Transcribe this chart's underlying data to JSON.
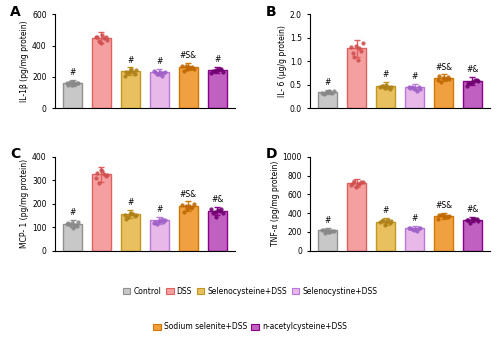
{
  "panels": [
    {
      "label": "A",
      "ylabel": "IL-1β (pg/mg protein)",
      "ylim": [
        0,
        600
      ],
      "yticks": [
        0,
        200,
        400,
        600
      ],
      "bar_means": [
        160,
        450,
        235,
        230,
        265,
        245
      ],
      "bar_errors": [
        18,
        35,
        25,
        20,
        22,
        18
      ],
      "sig_labels": [
        "#",
        "",
        "#",
        "#",
        "#S&",
        "#"
      ],
      "dots": [
        [
          145,
          152,
          160,
          158,
          165,
          170,
          150,
          162
        ],
        [
          415,
          435,
          455,
          470,
          448,
          432,
          458,
          452
        ],
        [
          205,
          220,
          238,
          232,
          248,
          228,
          222,
          242
        ],
        [
          205,
          218,
          232,
          222,
          238,
          228,
          218,
          232
        ],
        [
          238,
          252,
          262,
          268,
          258,
          272,
          252,
          265
        ],
        [
          222,
          232,
          242,
          248,
          238,
          252,
          245,
          235
        ]
      ]
    },
    {
      "label": "B",
      "ylabel": "IL- 6 (μg/g protein)",
      "ylim": [
        0,
        2.0
      ],
      "yticks": [
        0.0,
        0.5,
        1.0,
        1.5,
        2.0
      ],
      "bar_means": [
        0.35,
        1.28,
        0.48,
        0.45,
        0.65,
        0.58
      ],
      "bar_errors": [
        0.04,
        0.18,
        0.07,
        0.06,
        0.07,
        0.08
      ],
      "sig_labels": [
        "#",
        "",
        "#",
        "#",
        "#S&",
        "#&"
      ],
      "dots": [
        [
          0.3,
          0.32,
          0.35,
          0.34,
          0.37,
          0.33,
          0.32,
          0.36
        ],
        [
          1.02,
          1.08,
          1.28,
          1.38,
          1.32,
          1.18,
          1.22,
          1.3
        ],
        [
          0.4,
          0.43,
          0.48,
          0.46,
          0.5,
          0.45,
          0.44,
          0.48
        ],
        [
          0.37,
          0.4,
          0.44,
          0.42,
          0.46,
          0.41,
          0.43,
          0.45
        ],
        [
          0.56,
          0.6,
          0.64,
          0.66,
          0.63,
          0.61,
          0.65,
          0.68
        ],
        [
          0.48,
          0.53,
          0.56,
          0.6,
          0.55,
          0.58,
          0.53,
          0.6
        ]
      ]
    },
    {
      "label": "C",
      "ylabel": "MCP- 1 (pg/mg protein)",
      "ylim": [
        0,
        400
      ],
      "yticks": [
        0,
        100,
        200,
        300,
        400
      ],
      "bar_means": [
        115,
        325,
        155,
        130,
        190,
        170
      ],
      "bar_errors": [
        15,
        32,
        18,
        15,
        20,
        18
      ],
      "sig_labels": [
        "#",
        "",
        "#",
        "#",
        "#S&",
        "#&"
      ],
      "dots": [
        [
          98,
          108,
          118,
          113,
          122,
          106,
          110,
          116
        ],
        [
          290,
          308,
          328,
          342,
          318,
          332,
          322,
          338
        ],
        [
          135,
          145,
          155,
          152,
          162,
          147,
          152,
          158
        ],
        [
          112,
          120,
          130,
          126,
          136,
          122,
          118,
          128
        ],
        [
          165,
          178,
          190,
          196,
          182,
          192,
          185,
          198
        ],
        [
          145,
          160,
          170,
          176,
          162,
          172,
          165,
          178
        ]
      ]
    },
    {
      "label": "D",
      "ylabel": "TNF-α (pg/mg protein)",
      "ylim": [
        0,
        1000
      ],
      "yticks": [
        0,
        200,
        400,
        600,
        800,
        1000
      ],
      "bar_means": [
        215,
        720,
        310,
        240,
        370,
        330
      ],
      "bar_errors": [
        25,
        45,
        35,
        25,
        30,
        28
      ],
      "sig_labels": [
        "#",
        "",
        "#",
        "#",
        "#S&",
        "#&"
      ],
      "dots": [
        [
          188,
          202,
          212,
          218,
          208,
          222,
          205,
          215
        ],
        [
          675,
          695,
          725,
          740,
          715,
          705,
          730,
          735
        ],
        [
          272,
          292,
          312,
          322,
          302,
          318,
          308,
          322
        ],
        [
          212,
          225,
          238,
          245,
          232,
          242,
          235,
          245
        ],
        [
          338,
          355,
          370,
          378,
          362,
          375,
          365,
          380
        ],
        [
          298,
          315,
          328,
          338,
          322,
          335,
          325,
          342
        ]
      ]
    }
  ],
  "groups": [
    "Control",
    "DSS",
    "Selenocysteine+DSS",
    "Selenocystine+DSS",
    "Sodium selenite+DSS",
    "n-acetylcysteine+DSS"
  ],
  "bar_fill_colors": [
    "#c8c8c8",
    "#f4a0a0",
    "#e8c060",
    "#e8b8e8",
    "#f0a040",
    "#c060c0"
  ],
  "bar_edge_colors": [
    "#909090",
    "#e06060",
    "#c09820",
    "#b878d8",
    "#d07800",
    "#8b008b"
  ],
  "dot_colors": [
    "#888888",
    "#d05050",
    "#b08018",
    "#a060c8",
    "#c06800",
    "#700070"
  ],
  "legend_face_colors": [
    "#c8c8c8",
    "#f4a0a0",
    "#e8c060",
    "#e8b8e8",
    "#f0a040",
    "#c060c0"
  ],
  "legend_edge_colors": [
    "#909090",
    "#e06060",
    "#c09820",
    "#b878d8",
    "#d07800",
    "#8b008b"
  ]
}
